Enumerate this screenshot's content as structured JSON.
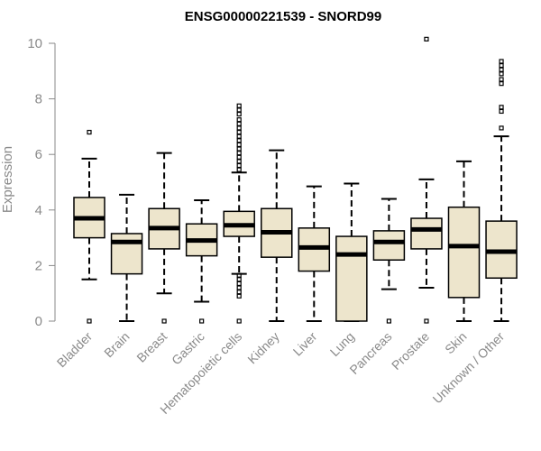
{
  "chart_data": {
    "type": "box",
    "title": "ENSG00000221539 - SNORD99",
    "ylabel": "Expression",
    "xlabel": "",
    "ylim": [
      0,
      10
    ],
    "yticks": [
      0,
      2,
      4,
      6,
      8,
      10
    ],
    "grid": false,
    "box_fill": "#ede5cc",
    "categories": [
      "Bladder",
      "Brain",
      "Breast",
      "Gastric",
      "Hematopoietic cells",
      "Kidney",
      "Liver",
      "Lung",
      "Pancreas",
      "Prostate",
      "Skin",
      "Unknown / Other"
    ],
    "boxes": [
      {
        "category": "Bladder",
        "q1": 3.0,
        "median": 3.7,
        "q3": 4.45,
        "whisker_low": 1.5,
        "whisker_high": 5.85,
        "outliers": [
          0.0,
          6.8
        ]
      },
      {
        "category": "Brain",
        "q1": 1.7,
        "median": 2.85,
        "q3": 3.15,
        "whisker_low": 0.0,
        "whisker_high": 4.55,
        "outliers": []
      },
      {
        "category": "Breast",
        "q1": 2.6,
        "median": 3.35,
        "q3": 4.05,
        "whisker_low": 1.0,
        "whisker_high": 6.05,
        "outliers": [
          0.0
        ]
      },
      {
        "category": "Gastric",
        "q1": 2.35,
        "median": 2.9,
        "q3": 3.5,
        "whisker_low": 0.7,
        "whisker_high": 4.35,
        "outliers": [
          0.0
        ]
      },
      {
        "category": "Hematopoietic cells",
        "q1": 3.05,
        "median": 3.45,
        "q3": 3.95,
        "whisker_low": 1.7,
        "whisker_high": 5.35,
        "outliers": [
          0.0,
          0.9,
          1.05,
          1.2,
          1.35,
          1.5,
          1.65,
          5.45,
          5.6,
          5.75,
          5.9,
          6.05,
          6.2,
          6.35,
          6.5,
          6.65,
          6.8,
          6.95,
          7.1,
          7.25,
          7.45,
          7.6,
          7.75
        ]
      },
      {
        "category": "Kidney",
        "q1": 2.3,
        "median": 3.2,
        "q3": 4.05,
        "whisker_low": 0.0,
        "whisker_high": 6.15,
        "outliers": []
      },
      {
        "category": "Liver",
        "q1": 1.8,
        "median": 2.65,
        "q3": 3.35,
        "whisker_low": 0.0,
        "whisker_high": 4.85,
        "outliers": []
      },
      {
        "category": "Lung",
        "q1": 0.0,
        "median": 2.4,
        "q3": 3.05,
        "whisker_low": 0.0,
        "whisker_high": 4.95,
        "outliers": []
      },
      {
        "category": "Pancreas",
        "q1": 2.2,
        "median": 2.85,
        "q3": 3.25,
        "whisker_low": 1.15,
        "whisker_high": 4.4,
        "outliers": [
          0.0
        ]
      },
      {
        "category": "Prostate",
        "q1": 2.6,
        "median": 3.3,
        "q3": 3.7,
        "whisker_low": 1.2,
        "whisker_high": 5.1,
        "outliers": [
          0.0,
          10.15
        ]
      },
      {
        "category": "Skin",
        "q1": 0.85,
        "median": 2.7,
        "q3": 4.1,
        "whisker_low": 0.0,
        "whisker_high": 5.75,
        "outliers": []
      },
      {
        "category": "Unknown / Other",
        "q1": 1.55,
        "median": 2.5,
        "q3": 3.6,
        "whisker_low": 0.0,
        "whisker_high": 6.65,
        "outliers": [
          6.95,
          7.55,
          7.7,
          8.55,
          8.7,
          8.9,
          9.05,
          9.2,
          9.35
        ]
      }
    ]
  }
}
